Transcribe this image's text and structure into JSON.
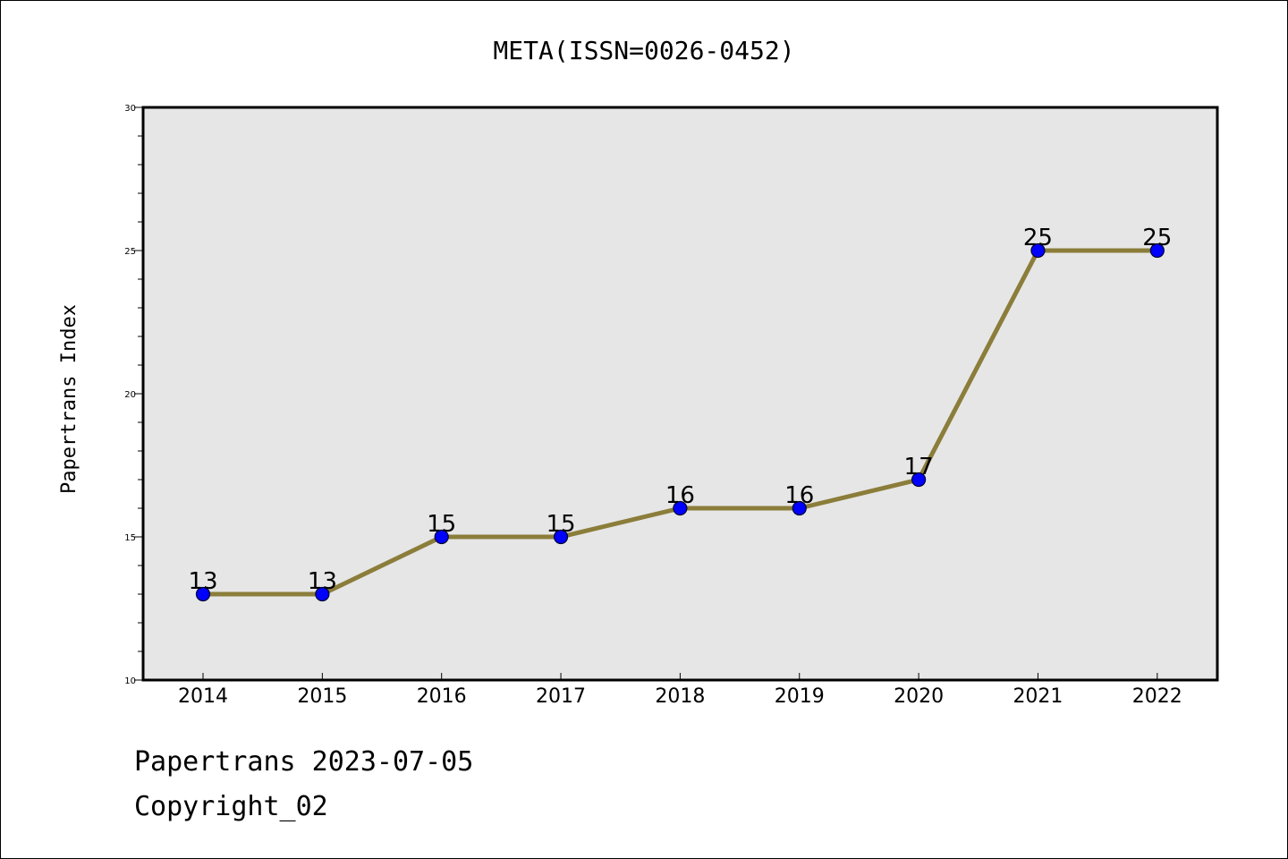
{
  "chart_data": {
    "type": "line",
    "title": "META(ISSN=0026-0452)",
    "xlabel": "",
    "ylabel": "Papertrans Index",
    "categories": [
      "2014",
      "2015",
      "2016",
      "2017",
      "2018",
      "2019",
      "2020",
      "2021",
      "2022"
    ],
    "values": [
      13,
      13,
      15,
      15,
      16,
      16,
      17,
      25,
      25
    ],
    "ylim": [
      10,
      30
    ],
    "yticks": [
      10,
      15,
      20,
      25,
      30
    ],
    "grid": false,
    "legend": "none",
    "data_labels": true
  },
  "colors": {
    "line": "#8b7d3a",
    "marker_fill": "#0000ff",
    "marker_edge": "#000033",
    "plot_background": "#e6e6e6"
  },
  "footer": {
    "line1": "Papertrans 2023-07-05",
    "line2": "Copyright_02"
  }
}
